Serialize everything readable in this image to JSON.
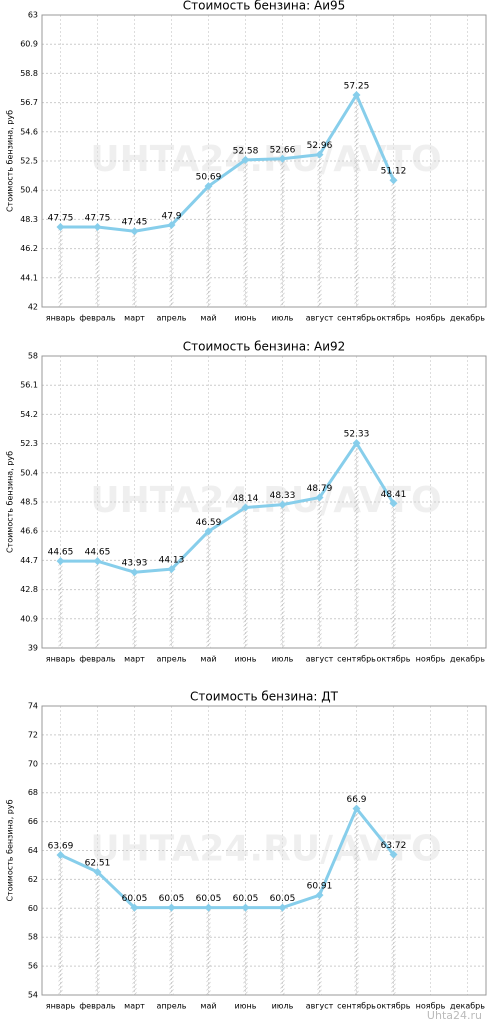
{
  "chart_data": [
    {
      "type": "line",
      "title": "Стоимость бензина: Аи95",
      "y_label": "Стоимость бензина, руб",
      "watermark": "UHTA24.RU/AVTO",
      "categories": [
        "январь",
        "февраль",
        "март",
        "апрель",
        "май",
        "июнь",
        "июль",
        "август",
        "сентябрь",
        "октябрь",
        "ноябрь",
        "декабрь"
      ],
      "series": [
        {
          "name": "Аи95",
          "color": "#87ceeb",
          "values": [
            47.75,
            47.75,
            47.45,
            47.9,
            50.69,
            52.58,
            52.66,
            52.96,
            57.25,
            51.12,
            null,
            null
          ]
        }
      ],
      "ylim": [
        42,
        63
      ],
      "yticks": [
        42,
        44.1,
        46.2,
        48.3,
        50.4,
        52.5,
        54.6,
        56.7,
        58.8,
        60.9,
        63
      ],
      "grid": true
    },
    {
      "type": "line",
      "title": "Стоимость бензина: Аи92",
      "y_label": "Стоимость бензина, руб",
      "watermark": "UHTA24.RU/AVTO",
      "categories": [
        "январь",
        "февраль",
        "март",
        "апрель",
        "май",
        "июнь",
        "июль",
        "август",
        "сентябрь",
        "октябрь",
        "ноябрь",
        "декабрь"
      ],
      "series": [
        {
          "name": "Аи92",
          "color": "#87ceeb",
          "values": [
            44.65,
            44.65,
            43.93,
            44.13,
            46.59,
            48.14,
            48.33,
            48.79,
            52.33,
            48.41,
            null,
            null
          ]
        }
      ],
      "ylim": [
        39,
        58
      ],
      "yticks": [
        39,
        40.9,
        42.8,
        44.7,
        46.6,
        48.5,
        50.4,
        52.3,
        54.2,
        56.1,
        58
      ],
      "grid": true
    },
    {
      "type": "line",
      "title": "Стоимость бензина: ДТ",
      "y_label": "Стоимость бензина, руб",
      "watermark": "UHTA24.RU/AVTO",
      "categories": [
        "январь",
        "февраль",
        "март",
        "апрель",
        "май",
        "июнь",
        "июль",
        "август",
        "сентябрь",
        "октябрь",
        "ноябрь",
        "декабрь"
      ],
      "series": [
        {
          "name": "ДТ",
          "color": "#87ceeb",
          "values": [
            63.69,
            62.51,
            60.05,
            60.05,
            60.05,
            60.05,
            60.05,
            60.91,
            66.9,
            63.72,
            null,
            null
          ]
        }
      ],
      "ylim": [
        54,
        74
      ],
      "yticks": [
        54,
        56,
        58,
        60,
        62,
        64,
        66,
        68,
        70,
        72,
        74
      ],
      "grid": true
    }
  ],
  "footer": "Uhta24.ru"
}
